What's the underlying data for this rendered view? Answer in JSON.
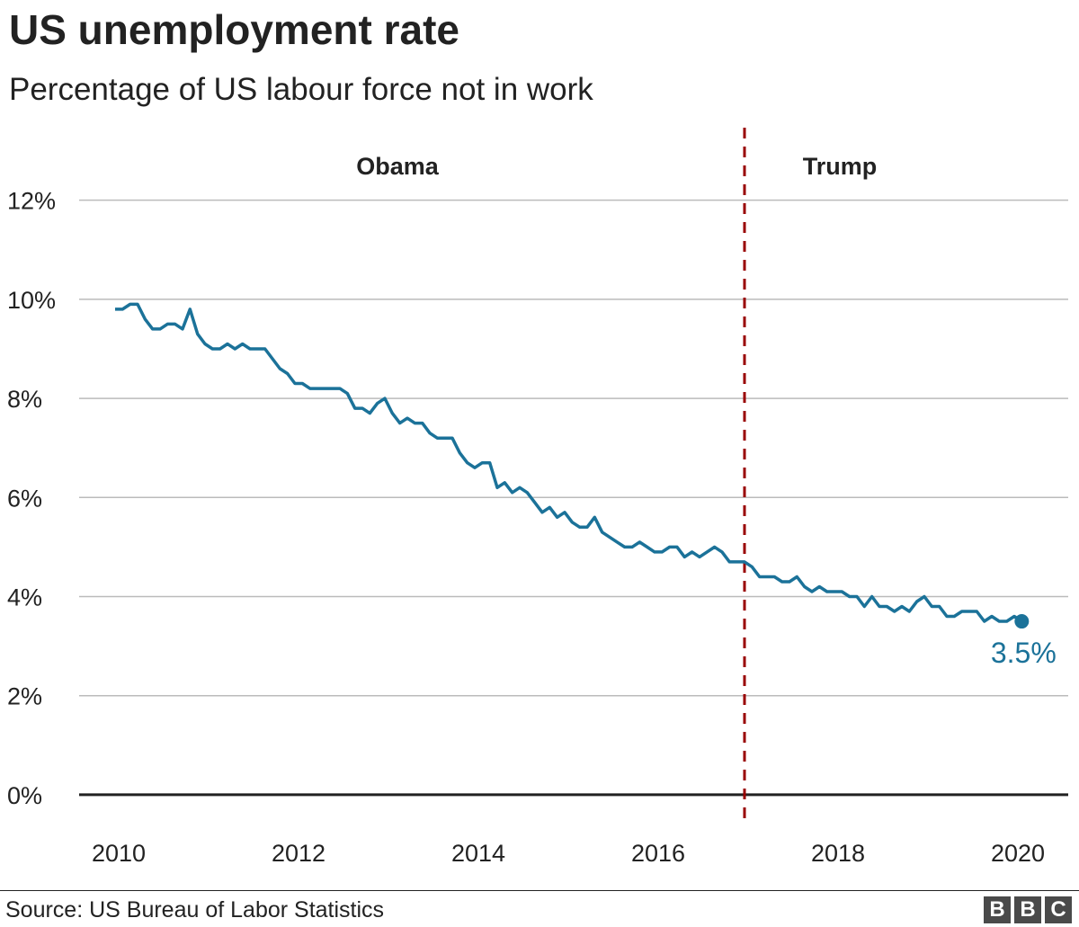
{
  "header": {
    "title": "US unemployment rate",
    "subtitle": "Percentage of US labour force not in work"
  },
  "footer": {
    "source": "Source: US Bureau of Labor Statistics",
    "logo": [
      "B",
      "B",
      "C"
    ]
  },
  "colors": {
    "line": "#1b7299",
    "divider": "#990000",
    "grid": "#bbbbbb",
    "baseline": "#222222",
    "text": "#222222"
  },
  "chart_data": {
    "type": "line",
    "title": "US unemployment rate",
    "subtitle": "Percentage of US labour force not in work",
    "xlabel": "",
    "ylabel": "",
    "xlim": [
      2009.6,
      2020.6
    ],
    "ylim": [
      -0.8,
      13.5
    ],
    "grid": true,
    "x_ticks": [
      2010,
      2012,
      2014,
      2016,
      2018,
      2020
    ],
    "x_tick_labels": [
      "2010",
      "2012",
      "2014",
      "2016",
      "2018",
      "2020"
    ],
    "y_ticks": [
      0,
      2,
      4,
      6,
      8,
      10,
      12
    ],
    "y_tick_labels": [
      "0%",
      "2%",
      "4%",
      "6%",
      "8%",
      "10%",
      "12%"
    ],
    "periods": [
      {
        "label": "Obama",
        "start": 2009.6,
        "end": 2017.0
      },
      {
        "label": "Trump",
        "start": 2017.0,
        "end": 2020.6
      }
    ],
    "divider_x": 2017.0,
    "end_label": "3.5%",
    "series": [
      {
        "start": "2010-01",
        "frequency": "monthly",
        "values": [
          9.8,
          9.8,
          9.9,
          9.9,
          9.6,
          9.4,
          9.4,
          9.5,
          9.5,
          9.4,
          9.8,
          9.3,
          9.1,
          9.0,
          9.0,
          9.1,
          9.0,
          9.1,
          9.0,
          9.0,
          9.0,
          8.8,
          8.6,
          8.5,
          8.3,
          8.3,
          8.2,
          8.2,
          8.2,
          8.2,
          8.2,
          8.1,
          7.8,
          7.8,
          7.7,
          7.9,
          8.0,
          7.7,
          7.5,
          7.6,
          7.5,
          7.5,
          7.3,
          7.2,
          7.2,
          7.2,
          6.9,
          6.7,
          6.6,
          6.7,
          6.7,
          6.2,
          6.3,
          6.1,
          6.2,
          6.1,
          5.9,
          5.7,
          5.8,
          5.6,
          5.7,
          5.5,
          5.4,
          5.4,
          5.6,
          5.3,
          5.2,
          5.1,
          5.0,
          5.0,
          5.1,
          5.0,
          4.9,
          4.9,
          5.0,
          5.0,
          4.8,
          4.9,
          4.8,
          4.9,
          5.0,
          4.9,
          4.7,
          4.7,
          4.7,
          4.6,
          4.4,
          4.4,
          4.4,
          4.3,
          4.3,
          4.4,
          4.2,
          4.1,
          4.2,
          4.1,
          4.1,
          4.1,
          4.0,
          4.0,
          3.8,
          4.0,
          3.8,
          3.8,
          3.7,
          3.8,
          3.7,
          3.9,
          4.0,
          3.8,
          3.8,
          3.6,
          3.6,
          3.7,
          3.7,
          3.7,
          3.5,
          3.6,
          3.5,
          3.5,
          3.6,
          3.5
        ]
      }
    ]
  }
}
